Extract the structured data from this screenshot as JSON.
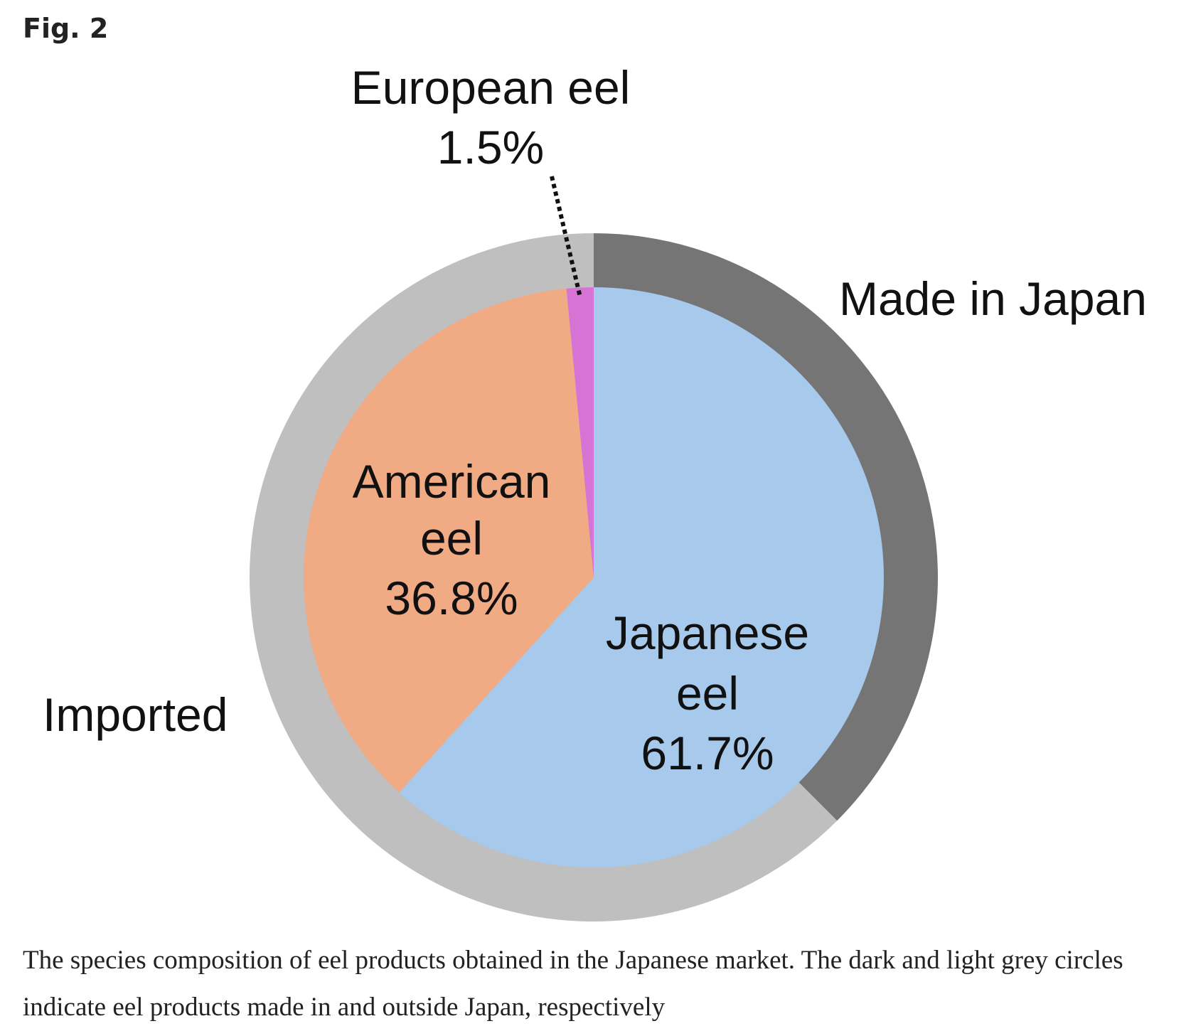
{
  "figure": {
    "label": "Fig. 2",
    "caption": "The species composition of eel products obtained in the Japanese market. The dark and light grey circles indicate eel products made in and outside Japan, respectively"
  },
  "chart_data": {
    "type": "pie",
    "title": "",
    "slices": [
      {
        "name_lines": [
          "Japanese",
          "eel"
        ],
        "value": 61.7,
        "value_label": "61.7%",
        "color": "#a7c9eb"
      },
      {
        "name_lines": [
          "American",
          "eel"
        ],
        "value": 36.8,
        "value_label": "36.8%",
        "color": "#f0aa84"
      },
      {
        "name_lines": [
          "European eel"
        ],
        "value": 1.5,
        "value_label": "1.5%",
        "color": "#d673d4"
      }
    ],
    "outer_ring": [
      {
        "name": "Made in Japan",
        "value": 37.5,
        "color": "#757575"
      },
      {
        "name": "Imported",
        "value": 62.5,
        "color": "#bfbfbf"
      }
    ]
  }
}
